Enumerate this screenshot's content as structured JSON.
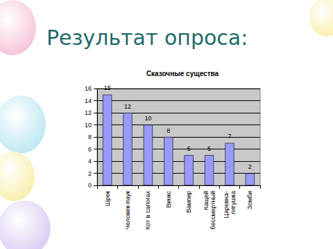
{
  "heading": "Результат опроса:",
  "chart_data": {
    "type": "bar",
    "title": "Сказочные существа",
    "categories": [
      "Шрек",
      "Человек-паук",
      "Кот в сапогах",
      "Винкс",
      "Вампир",
      "Кащей бессмертный",
      "Царевна-лягушка",
      "Зомби"
    ],
    "values": [
      15,
      12,
      10,
      8,
      5,
      5,
      7,
      2
    ],
    "color": "#9999ff",
    "ylim": [
      0,
      16
    ],
    "yticks": [
      0,
      2,
      4,
      6,
      8,
      10,
      12,
      14,
      16
    ],
    "grid": true,
    "data_labels": true
  }
}
